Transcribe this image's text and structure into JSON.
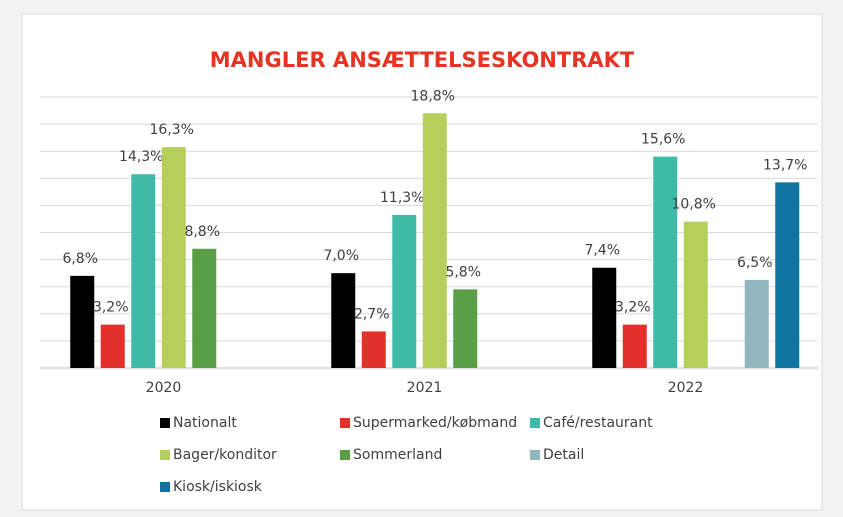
{
  "chart_data": {
    "type": "bar",
    "title": "MANGLER ANSÆTTELSESKONTRAKT",
    "categories": [
      "2020",
      "2021",
      "2022"
    ],
    "series": [
      {
        "name": "Nationalt",
        "color": "#000000",
        "values": [
          6.8,
          7.0,
          7.4
        ],
        "value_labels": [
          "6,8%",
          "7,0%",
          "7,4%"
        ]
      },
      {
        "name": "Supermarked/købmand",
        "color": "#e3302a",
        "values": [
          3.2,
          2.7,
          3.2
        ],
        "value_labels": [
          "3,2%",
          "2,7%",
          "3,2%"
        ]
      },
      {
        "name": "Café/restaurant",
        "color": "#3fbaa8",
        "values": [
          14.3,
          11.3,
          15.6
        ],
        "value_labels": [
          "14,3%",
          "11,3%",
          "15,6%"
        ]
      },
      {
        "name": "Bager/konditor",
        "color": "#b5cf5a",
        "values": [
          16.3,
          18.8,
          10.8
        ],
        "value_labels": [
          "16,3%",
          "18,8%",
          "10,8%"
        ]
      },
      {
        "name": "Sommerland",
        "color": "#5a9e45",
        "values": [
          8.8,
          5.8,
          null
        ],
        "value_labels": [
          "8,8%",
          "5,8%",
          null
        ]
      },
      {
        "name": "Detail",
        "color": "#8fb7bd",
        "values": [
          null,
          null,
          6.5
        ],
        "value_labels": [
          null,
          null,
          "6,5%"
        ]
      },
      {
        "name": "Kiosk/iskiosk",
        "color": "#0f73a0",
        "values": [
          null,
          null,
          13.7
        ],
        "value_labels": [
          null,
          null,
          "13,7%"
        ]
      }
    ],
    "ylim": [
      0,
      20
    ],
    "yticks": [
      0,
      2,
      4,
      6,
      8,
      10,
      12,
      14,
      16,
      18,
      20
    ],
    "grid": true
  }
}
